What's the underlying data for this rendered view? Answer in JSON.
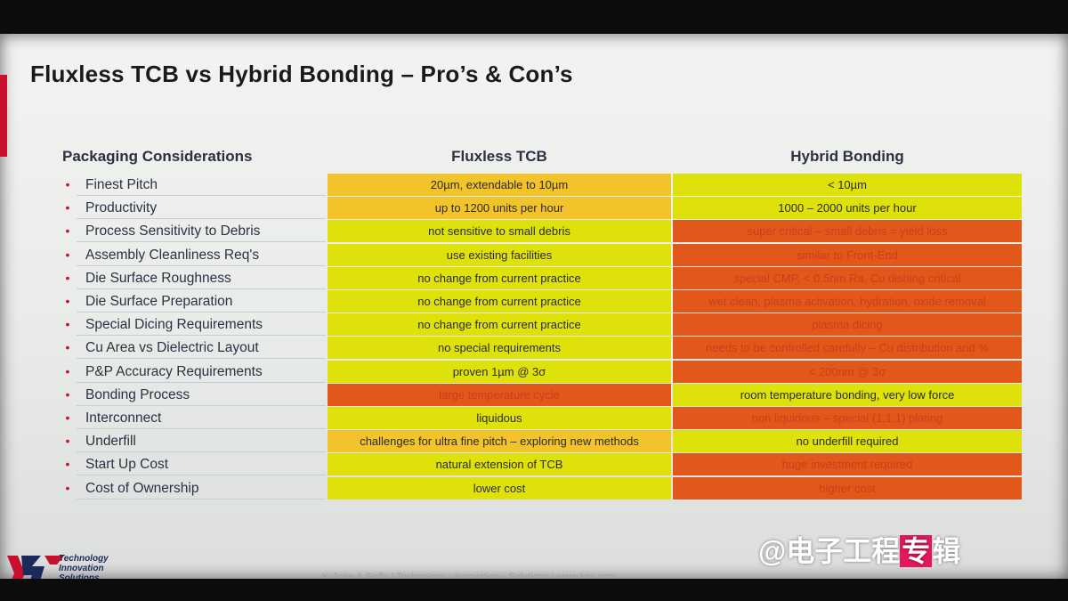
{
  "title": "Fluxless TCB vs Hybrid Bonding – Pro’s & Con’s",
  "headers": {
    "label": "Packaging Considerations",
    "tcb": "Fluxless TCB",
    "hb": "Hybrid Bonding"
  },
  "bullet": "•",
  "rows": [
    {
      "label": "Finest Pitch",
      "tcb": "20µm, extendable to 10µm",
      "tcb_color": "amber",
      "hb": "< 10µm",
      "hb_color": "yellow"
    },
    {
      "label": "Productivity",
      "tcb": "up to 1200 units per hour",
      "tcb_color": "amber",
      "hb": "1000 – 2000 units per hour",
      "hb_color": "yellow"
    },
    {
      "label": "Process Sensitivity to Debris",
      "tcb": "not sensitive to small debris",
      "tcb_color": "yellow",
      "hb": "super critical – small debris = yield loss",
      "hb_color": "orange"
    },
    {
      "label": "Assembly Cleanliness Req's",
      "tcb": "use existing facilities",
      "tcb_color": "yellow",
      "hb": "similar to Front-End",
      "hb_color": "orange"
    },
    {
      "label": "Die Surface Roughness",
      "tcb": "no change from current practice",
      "tcb_color": "yellow",
      "hb": "special CMP, < 0.5nm Ra, Cu dishing critical",
      "hb_color": "orange"
    },
    {
      "label": "Die Surface Preparation",
      "tcb": "no change from current practice",
      "tcb_color": "yellow",
      "hb": "wet clean, plasma activation, hydration, oxide removal",
      "hb_color": "orange"
    },
    {
      "label": "Special Dicing Requirements",
      "tcb": "no change from current practice",
      "tcb_color": "yellow",
      "hb": "plasma dicing",
      "hb_color": "orange"
    },
    {
      "label": "Cu Area vs Dielectric Layout",
      "tcb": "no special requirements",
      "tcb_color": "yellow",
      "hb": "needs to be controlled carefully – Cu distribution and %",
      "hb_color": "orange"
    },
    {
      "label": "P&P Accuracy Requirements",
      "tcb": "proven 1µm @ 3σ",
      "tcb_color": "yellow",
      "hb": "< 200nm @ 3σ",
      "hb_color": "orange"
    },
    {
      "label": "Bonding Process",
      "tcb": "large temperature cycle",
      "tcb_color": "orange",
      "hb": "room temperature bonding, very low force",
      "hb_color": "yellow"
    },
    {
      "label": "Interconnect",
      "tcb": "liquidous",
      "tcb_color": "yellow",
      "hb": "non liquidous – special (1,1,1) plating",
      "hb_color": "orange"
    },
    {
      "label": "Underfill",
      "tcb": "challenges for ultra fine pitch – exploring new methods",
      "tcb_color": "amber",
      "hb": "no underfill required",
      "hb_color": "yellow"
    },
    {
      "label": "Start Up Cost",
      "tcb": "natural extension of TCB",
      "tcb_color": "yellow",
      "hb": "huge investment required",
      "hb_color": "orange"
    },
    {
      "label": "Cost of Ownership",
      "tcb": "lower cost",
      "tcb_color": "yellow",
      "hb": "higher cost",
      "hb_color": "orange"
    }
  ],
  "logo": {
    "line1": "Technology",
    "line2": "Innovation",
    "line3": "Solutions"
  },
  "footer": "Kulicke & Soffa | Technology · Innovation · Solutions | www.kns.com",
  "watermark": {
    "prefix": "@电子工程",
    "highlight": "专",
    "suffix": "辑"
  },
  "colors": {
    "yellow": "#dfe20a",
    "amber": "#f2c32a",
    "orange": "#e2571a",
    "accent_red": "#c8102e",
    "watermark_pink": "#e3175d"
  }
}
